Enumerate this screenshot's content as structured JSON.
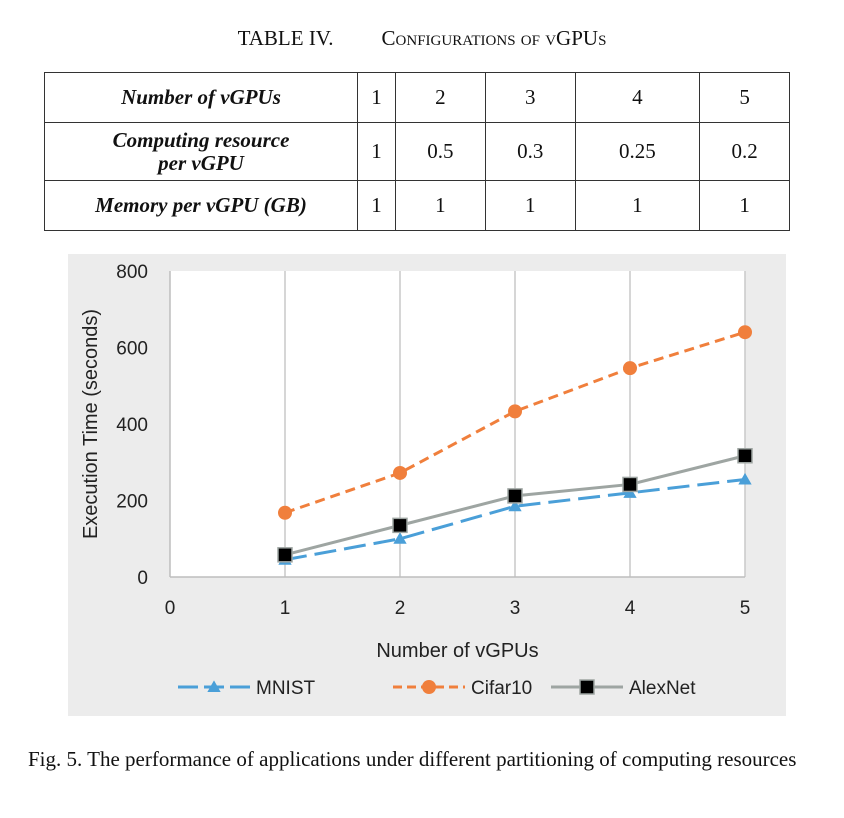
{
  "table": {
    "label": "TABLE IV.",
    "title": "Configurations of vGPUs",
    "rows": [
      {
        "header": "Number of vGPUs",
        "cells": [
          "1",
          "2",
          "3",
          "4",
          "5"
        ]
      },
      {
        "header": "Computing resource\nper vGPU",
        "cells": [
          "1",
          "0.5",
          "0.3",
          "0.25",
          "0.2"
        ]
      },
      {
        "header": "Memory per vGPU (GB)",
        "cells": [
          "1",
          "1",
          "1",
          "1",
          "1"
        ]
      }
    ]
  },
  "chart_data": {
    "type": "line",
    "xlabel": "Number of vGPUs",
    "ylabel": "Execution Time (seconds)",
    "xlim": [
      0,
      5
    ],
    "ylim": [
      0,
      800
    ],
    "xticks": [
      0,
      1,
      2,
      3,
      4,
      5
    ],
    "yticks": [
      0,
      200,
      400,
      600,
      800
    ],
    "grid": "vertical",
    "legend_position": "bottom",
    "series": [
      {
        "name": "MNIST",
        "x": [
          1,
          2,
          3,
          4,
          5
        ],
        "values": [
          45,
          100,
          185,
          220,
          255
        ],
        "color": "#4a9fd8",
        "marker": "triangle",
        "dash": "long-dash"
      },
      {
        "name": "Cifar10",
        "x": [
          1,
          2,
          3,
          4,
          5
        ],
        "values": [
          168,
          272,
          433,
          546,
          640
        ],
        "color": "#f07f3c",
        "marker": "circle",
        "dash": "short-dash"
      },
      {
        "name": "AlexNet",
        "x": [
          1,
          2,
          3,
          4,
          5
        ],
        "values": [
          58,
          135,
          212,
          242,
          317
        ],
        "color": "#9ea5a2",
        "marker": "square",
        "dash": "solid"
      }
    ]
  },
  "figure_caption": "Fig. 5.  The performance of applications under different partitioning of computing resources"
}
